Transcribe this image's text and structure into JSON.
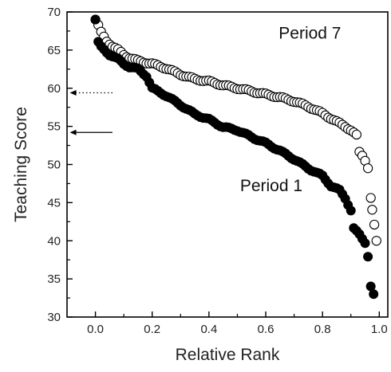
{
  "chart_data": {
    "type": "scatter",
    "xlabel": "Relative Rank",
    "ylabel": "Teaching Score",
    "xlim": [
      -0.1,
      1.03
    ],
    "ylim": [
      30,
      70
    ],
    "xticks": [
      0.0,
      0.2,
      0.4,
      0.6,
      0.8,
      1.0
    ],
    "xtick_labels": [
      "0.0",
      "0.2",
      "0.4",
      "0.6",
      "0.8",
      "1.0"
    ],
    "yticks": [
      30,
      35,
      40,
      45,
      50,
      55,
      60,
      65,
      70
    ],
    "ytick_labels": [
      "30",
      "35",
      "40",
      "45",
      "50",
      "55",
      "60",
      "65",
      "70"
    ],
    "grid": false,
    "legend": "none",
    "series": [
      {
        "name": "Period 7",
        "marker": "open-circle",
        "color": "#000000",
        "knots": [
          [
            0.0,
            69.0
          ],
          [
            0.01,
            68.2
          ],
          [
            0.02,
            67.3
          ],
          [
            0.04,
            66.2
          ],
          [
            0.06,
            65.5
          ],
          [
            0.08,
            65.0
          ],
          [
            0.1,
            64.4
          ],
          [
            0.12,
            64.0
          ],
          [
            0.15,
            63.6
          ],
          [
            0.2,
            63.2
          ],
          [
            0.25,
            62.6
          ],
          [
            0.3,
            61.8
          ],
          [
            0.35,
            61.2
          ],
          [
            0.4,
            60.9
          ],
          [
            0.45,
            60.4
          ],
          [
            0.5,
            60.0
          ],
          [
            0.55,
            59.6
          ],
          [
            0.6,
            59.2
          ],
          [
            0.65,
            58.8
          ],
          [
            0.7,
            58.3
          ],
          [
            0.75,
            57.6
          ],
          [
            0.8,
            56.7
          ],
          [
            0.85,
            55.6
          ],
          [
            0.88,
            55.0
          ],
          [
            0.9,
            54.5
          ],
          [
            0.92,
            53.8
          ],
          [
            0.93,
            51.6
          ],
          [
            0.94,
            51.2
          ],
          [
            0.95,
            50.6
          ],
          [
            0.96,
            49.6
          ],
          [
            0.97,
            45.6
          ],
          [
            0.975,
            44.0
          ],
          [
            0.99,
            40.0
          ]
        ]
      },
      {
        "name": "Period 1",
        "marker": "filled-circle",
        "color": "#000000",
        "knots": [
          [
            0.0,
            69.0
          ],
          [
            0.01,
            66.0
          ],
          [
            0.02,
            65.4
          ],
          [
            0.05,
            64.4
          ],
          [
            0.08,
            63.8
          ],
          [
            0.1,
            63.2
          ],
          [
            0.12,
            62.8
          ],
          [
            0.15,
            62.5
          ],
          [
            0.18,
            61.6
          ],
          [
            0.2,
            60.0
          ],
          [
            0.25,
            59.0
          ],
          [
            0.3,
            57.8
          ],
          [
            0.35,
            56.6
          ],
          [
            0.4,
            55.9
          ],
          [
            0.45,
            54.9
          ],
          [
            0.5,
            54.5
          ],
          [
            0.55,
            53.6
          ],
          [
            0.6,
            52.8
          ],
          [
            0.65,
            51.8
          ],
          [
            0.7,
            50.7
          ],
          [
            0.75,
            49.5
          ],
          [
            0.8,
            48.5
          ],
          [
            0.83,
            47.2
          ],
          [
            0.86,
            46.6
          ],
          [
            0.88,
            45.6
          ],
          [
            0.9,
            44.0
          ],
          [
            0.91,
            41.6
          ],
          [
            0.93,
            40.8
          ],
          [
            0.95,
            39.8
          ],
          [
            0.96,
            38.0
          ],
          [
            0.97,
            34.0
          ],
          [
            0.98,
            33.0
          ]
        ]
      }
    ],
    "annotations": [
      {
        "text": "Period 7",
        "x": 0.73,
        "y": 66.5
      },
      {
        "text": "Period 1",
        "x": 0.65,
        "y": 46.5
      }
    ],
    "arrows": [
      {
        "style": "dotted",
        "y": 59.4,
        "from_x": 0.06,
        "to_x": -0.09
      },
      {
        "style": "solid",
        "y": 54.2,
        "from_x": 0.06,
        "to_x": -0.09
      }
    ]
  }
}
